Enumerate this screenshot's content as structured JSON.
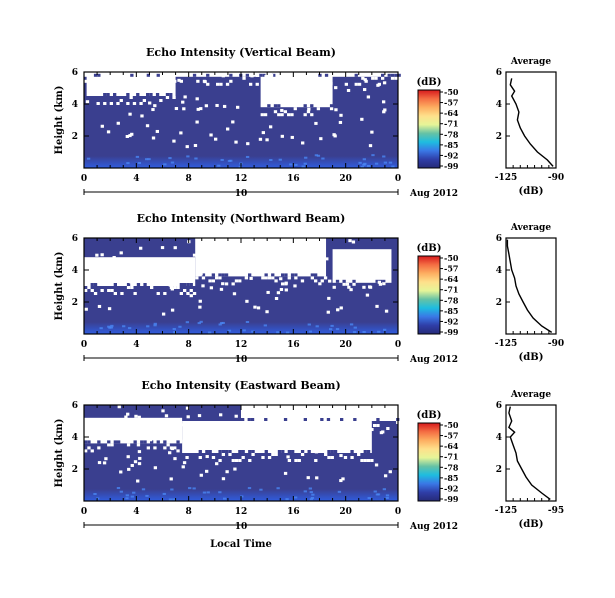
{
  "chart_data": [
    {
      "type": "heatmap",
      "title": "Echo Intensity (Vertical Beam)",
      "ylabel": "Height (km)",
      "x_ticks": [
        "0",
        "4",
        "8",
        "12",
        "16",
        "20",
        "0"
      ],
      "xlim": [
        0,
        24
      ],
      "y_ticks": [
        "6",
        "4",
        "2"
      ],
      "ylim": [
        0,
        6
      ],
      "date_label": "10",
      "month_label": "Aug 2012",
      "colorbar_unit": "(dB)",
      "colorbar_ticks": [
        "-50",
        "-57",
        "-64",
        "-71",
        "-78",
        "-85",
        "-92",
        "-99"
      ],
      "colorbar_range": [
        -99,
        -50
      ],
      "gap_regions": [
        {
          "t0": 0.2,
          "t1": 7.0,
          "h0": 4.5,
          "h1": 6.0
        },
        {
          "t0": 13.5,
          "t1": 19.0,
          "h0": 3.8,
          "h1": 6.0
        },
        {
          "t0": 0,
          "t1": 24,
          "h0": 5.7,
          "h1": 6.0
        }
      ],
      "average_profile": {
        "title": "Average",
        "xlabel": "(dB)",
        "x_ticks": [
          "-125",
          "-90"
        ],
        "xlim": [
          -125,
          -90
        ],
        "y_ticks": [
          "6",
          "4",
          "2"
        ],
        "ylim": [
          0,
          6
        ],
        "height_km": [
          0.1,
          0.5,
          1.0,
          1.5,
          2.0,
          2.5,
          3.0,
          3.5,
          4.0,
          4.5,
          4.8,
          5.2,
          5.6
        ],
        "value_db": [
          -92,
          -96,
          -103,
          -108,
          -112,
          -115,
          -117,
          -116,
          -118,
          -121,
          -119,
          -122,
          -121
        ]
      }
    },
    {
      "type": "heatmap",
      "title": "Echo Intensity (Northward Beam)",
      "ylabel": "Height (km)",
      "x_ticks": [
        "0",
        "4",
        "8",
        "12",
        "16",
        "20",
        "0"
      ],
      "xlim": [
        0,
        24
      ],
      "y_ticks": [
        "6",
        "4",
        "2"
      ],
      "ylim": [
        0,
        6
      ],
      "date_label": "10",
      "month_label": "Aug 2012",
      "colorbar_unit": "(dB)",
      "colorbar_ticks": [
        "-50",
        "-57",
        "-64",
        "-71",
        "-78",
        "-85",
        "-92",
        "-99"
      ],
      "colorbar_range": [
        -99,
        -50
      ],
      "gap_regions": [
        {
          "t0": 0,
          "t1": 8.5,
          "h0": 3.0,
          "h1": 4.8
        },
        {
          "t0": 8.5,
          "t1": 18.5,
          "h0": 3.6,
          "h1": 6.0
        },
        {
          "t0": 19.0,
          "t1": 23.5,
          "h0": 3.2,
          "h1": 5.3
        }
      ],
      "average_profile": {
        "title": "Average",
        "xlabel": "(dB)",
        "x_ticks": [
          "-125",
          "-90"
        ],
        "xlim": [
          -125,
          -90
        ],
        "y_ticks": [
          "6",
          "4",
          "2"
        ],
        "ylim": [
          0,
          6
        ],
        "height_km": [
          0.1,
          0.5,
          1.0,
          1.5,
          2.0,
          2.5,
          3.0,
          3.5,
          4.0,
          4.5,
          5.0,
          5.5,
          5.9
        ],
        "value_db": [
          -93,
          -100,
          -106,
          -110,
          -113,
          -116,
          -118,
          -119,
          -121,
          -122,
          -123,
          -124,
          -124
        ]
      }
    },
    {
      "type": "heatmap",
      "title": "Echo Intensity (Eastward Beam)",
      "ylabel": "Height (km)",
      "xlabel": "Local Time",
      "x_ticks": [
        "0",
        "4",
        "8",
        "12",
        "16",
        "20",
        "0"
      ],
      "xlim": [
        0,
        24
      ],
      "y_ticks": [
        "6",
        "4",
        "2"
      ],
      "ylim": [
        0,
        6
      ],
      "date_label": "10",
      "month_label": "Aug 2012",
      "colorbar_unit": "(dB)",
      "colorbar_ticks": [
        "-50",
        "-57",
        "-64",
        "-71",
        "-78",
        "-85",
        "-92",
        "-99"
      ],
      "colorbar_range": [
        -99,
        -50
      ],
      "gap_regions": [
        {
          "t0": 0,
          "t1": 7.5,
          "h0": 3.6,
          "h1": 5.2
        },
        {
          "t0": 7.5,
          "t1": 22.0,
          "h0": 3.0,
          "h1": 5.0
        },
        {
          "t0": 12.0,
          "t1": 24.0,
          "h0": 5.0,
          "h1": 6.0
        }
      ],
      "average_profile": {
        "title": "Average",
        "xlabel": "(dB)",
        "x_ticks": [
          "-125",
          "-95"
        ],
        "xlim": [
          -125,
          -90
        ],
        "y_ticks": [
          "6",
          "4",
          "2"
        ],
        "ylim": [
          0,
          6
        ],
        "height_km": [
          0.1,
          0.5,
          1.0,
          1.5,
          2.0,
          2.5,
          3.0,
          3.5,
          4.0,
          4.3,
          4.6,
          5.0,
          5.5,
          5.9
        ],
        "value_db": [
          -94,
          -100,
          -107,
          -111,
          -114,
          -117,
          -118,
          -120,
          -122,
          -119,
          -123,
          -121,
          -123,
          -122
        ]
      }
    }
  ],
  "colors": {
    "field": "#3a3f8f",
    "near_surface": "#2f60e8",
    "missing": "#ffffff",
    "colorbar_gradient": [
      "#d7191c",
      "#f46d43",
      "#fdae61",
      "#fee08b",
      "#e6f598",
      "#66c2a5",
      "#1ebde0",
      "#3a78e6",
      "#2f3ea8",
      "#262a78"
    ]
  }
}
